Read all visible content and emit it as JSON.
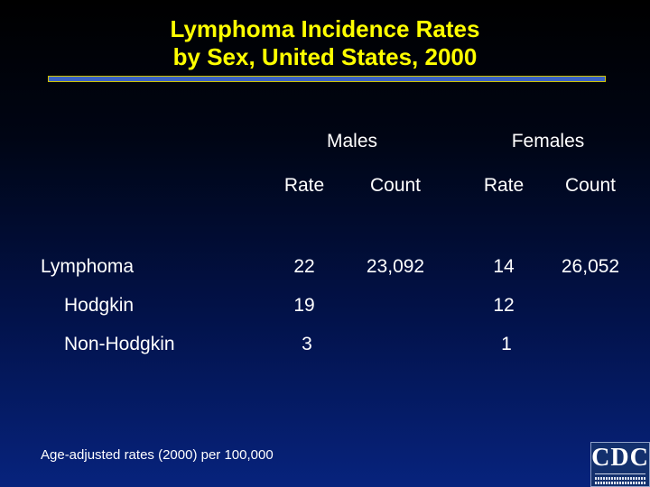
{
  "slide": {
    "title_lines": [
      "Lymphoma Incidence Rates",
      "by Sex, United States, 2000"
    ],
    "footnote": "Age-adjusted rates (2000) per 100,000"
  },
  "table": {
    "groups": {
      "males": "Males",
      "females": "Females"
    },
    "columns": {
      "males_rate": "Rate",
      "males_count": "Count",
      "females_rate": "Rate",
      "females_count": "Count"
    },
    "rows": [
      {
        "label": "Lymphoma",
        "males_rate": "22",
        "males_count": "23,092",
        "females_rate": "14",
        "females_count": "26,052"
      },
      {
        "label": "Hodgkin",
        "males_rate": "19",
        "males_count": "",
        "females_rate": "12",
        "females_count": ""
      },
      {
        "label": "Non-Hodgkin",
        "males_rate": "3",
        "males_count": "",
        "females_rate": "1",
        "females_count": ""
      }
    ]
  },
  "logo": {
    "text": "CDC",
    "colors": {
      "background": "#13306d",
      "text": "#ffffff"
    }
  },
  "colors": {
    "title": "#ffff00",
    "text": "#ffffff",
    "rule": "#3a63c4"
  }
}
